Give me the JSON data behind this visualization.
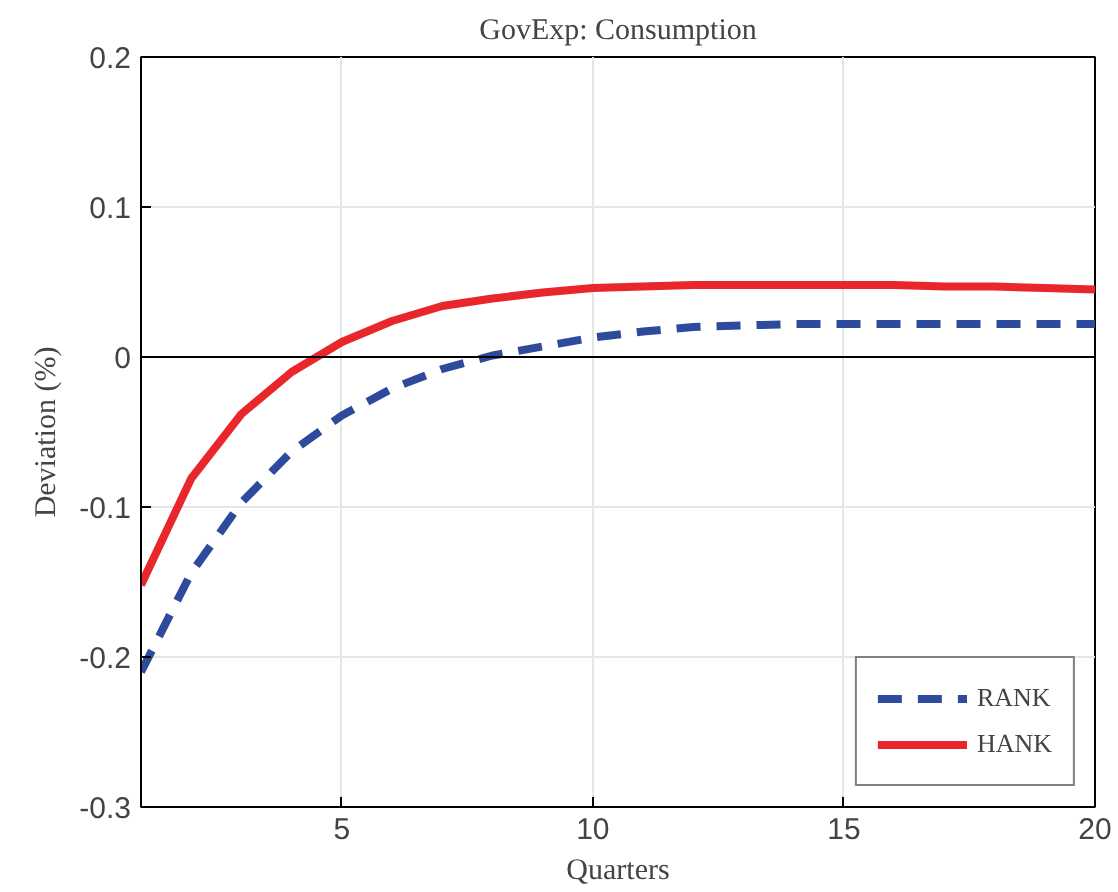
{
  "chart_data": {
    "type": "line",
    "title": "GovExp: Consumption",
    "xlabel": "Quarters",
    "ylabel": "Deviation (%)",
    "x": [
      1,
      2,
      3,
      4,
      5,
      6,
      7,
      8,
      9,
      10,
      11,
      12,
      13,
      14,
      15,
      16,
      17,
      18,
      19,
      20
    ],
    "series": [
      {
        "name": "RANK",
        "color": "#2e4a9c",
        "line_style": "dashed",
        "values": [
          -0.21,
          -0.144,
          -0.097,
          -0.063,
          -0.039,
          -0.021,
          -0.008,
          0.001,
          0.007,
          0.013,
          0.017,
          0.02,
          0.021,
          0.022,
          0.022,
          0.022,
          0.022,
          0.022,
          0.022,
          0.022
        ]
      },
      {
        "name": "HANK",
        "color": "#e8262b",
        "line_style": "solid",
        "values": [
          -0.152,
          -0.081,
          -0.038,
          -0.01,
          0.01,
          0.024,
          0.034,
          0.039,
          0.043,
          0.046,
          0.047,
          0.048,
          0.048,
          0.048,
          0.048,
          0.048,
          0.047,
          0.047,
          0.046,
          0.045
        ]
      }
    ],
    "xlim": [
      1,
      20
    ],
    "xticks": [
      5,
      10,
      15,
      20
    ],
    "ylim": [
      -0.3,
      0.2
    ],
    "yticks": [
      -0.3,
      -0.2,
      -0.1,
      0,
      0.1,
      0.2
    ],
    "ref_lines": [
      {
        "axis": "y",
        "value": 0,
        "color": "#000000"
      }
    ],
    "grid": true,
    "legend": "bottom right",
    "marker": "none"
  }
}
